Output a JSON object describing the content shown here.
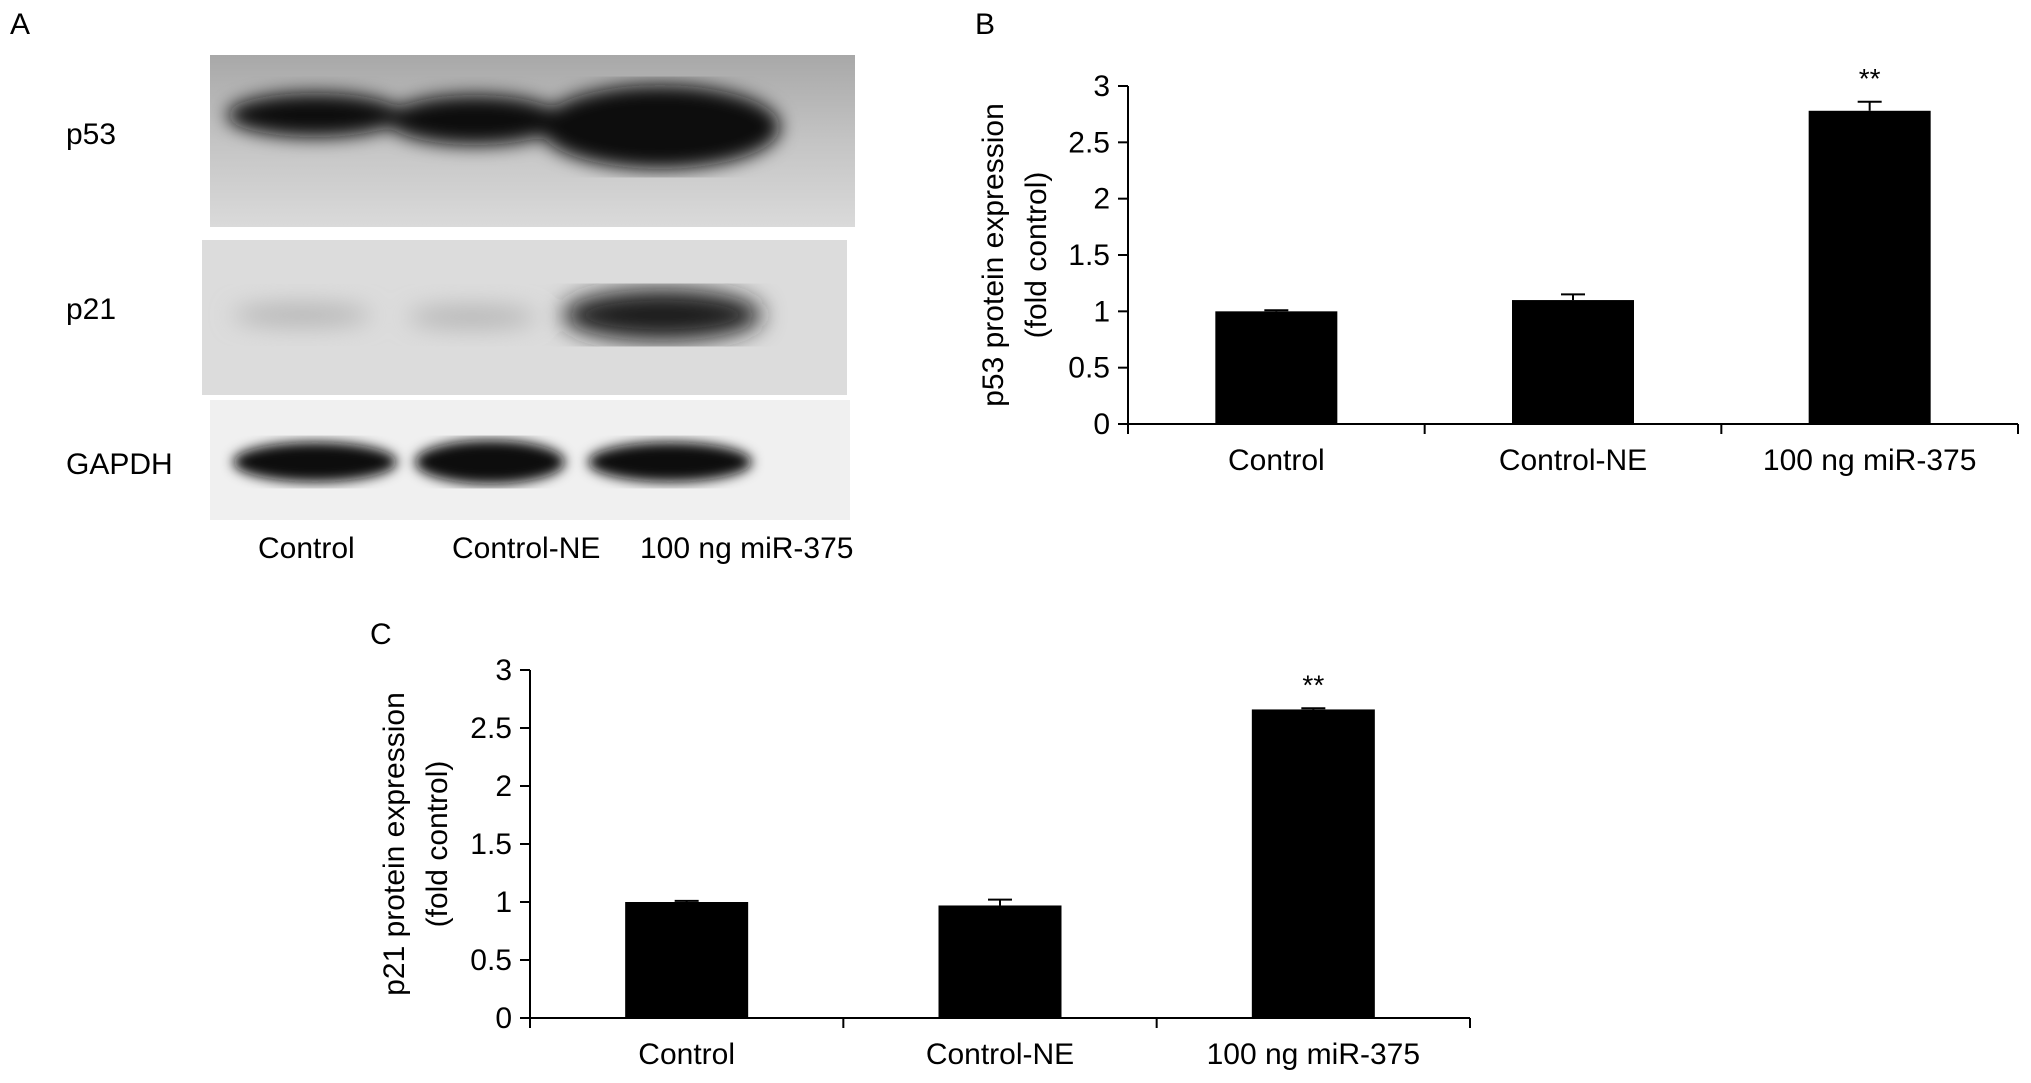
{
  "panel_a": {
    "letter": "A",
    "proteins": [
      "p53",
      "p21",
      "GAPDH"
    ],
    "lanes": [
      "Control",
      "Control-NE",
      "100 ng miR-375"
    ]
  },
  "panel_b": {
    "letter": "B"
  },
  "panel_c": {
    "letter": "C"
  },
  "chart_data": [
    {
      "panel": "B",
      "type": "bar",
      "categories": [
        "Control",
        "Control-NE",
        "100 ng miR-375"
      ],
      "values": [
        1.0,
        1.1,
        2.78
      ],
      "errors": [
        0.01,
        0.05,
        0.08
      ],
      "annotations": [
        "",
        "",
        "**"
      ],
      "title": "",
      "xlabel": "",
      "ylabel": "p53 protein expression (fold control)",
      "ylabel_lines": [
        "p53 protein expression",
        "(fold control)"
      ],
      "ylim": [
        0,
        3
      ],
      "yticks": [
        0,
        0.5,
        1,
        1.5,
        2,
        2.5,
        3
      ],
      "ytick_labels": [
        "0",
        "0.5",
        "1",
        "1.5",
        "2",
        "2.5",
        "3"
      ],
      "grid": false,
      "bar_color": "#000000"
    },
    {
      "panel": "C",
      "type": "bar",
      "categories": [
        "Control",
        "Control-NE",
        "100 ng miR-375"
      ],
      "values": [
        1.0,
        0.97,
        2.66
      ],
      "errors": [
        0.01,
        0.05,
        0.01
      ],
      "annotations": [
        "",
        "",
        "**"
      ],
      "title": "",
      "xlabel": "",
      "ylabel": "p21 protein expression (fold control)",
      "ylabel_lines": [
        "p21 protein expression",
        "(fold control)"
      ],
      "ylim": [
        0,
        3
      ],
      "yticks": [
        0,
        0.5,
        1,
        1.5,
        2,
        2.5,
        3
      ],
      "ytick_labels": [
        "0",
        "0.5",
        "1",
        "1.5",
        "2",
        "2.5",
        "3"
      ],
      "grid": false,
      "bar_color": "#000000"
    }
  ]
}
